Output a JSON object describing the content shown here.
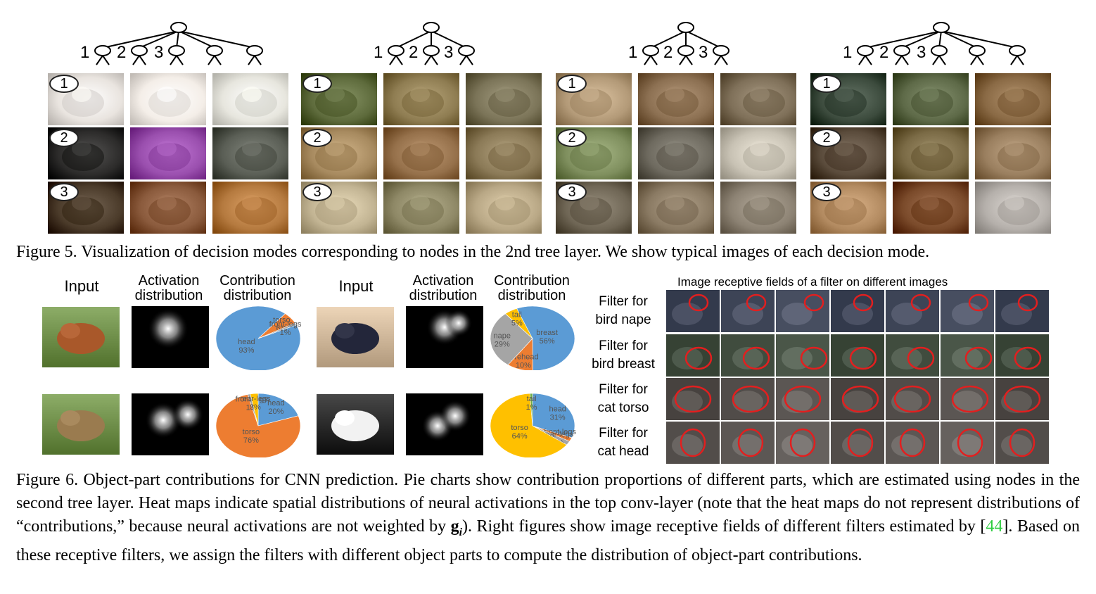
{
  "figure5": {
    "tree_numbers": [
      "1",
      "2",
      "3"
    ],
    "row_badges": [
      "1",
      "2",
      "3"
    ],
    "panels": [
      {
        "name": "dogs",
        "children": 5,
        "colors": [
          [
            "#e9e4df",
            "#f4eee8",
            "#e7e6de"
          ],
          [
            "#2c2b2a",
            "#9a4fae",
            "#5a5e55"
          ],
          [
            "#4b3b2a",
            "#8a5a3c",
            "#b57a3f"
          ]
        ]
      },
      {
        "name": "antelopes",
        "children": 3,
        "colors": [
          [
            "#5e6b3c",
            "#8f7d52",
            "#7b7458"
          ],
          [
            "#a78a5f",
            "#95704a",
            "#8b7a57"
          ],
          [
            "#c2b493",
            "#8e8866",
            "#b9a886"
          ]
        ]
      },
      {
        "name": "rabbits",
        "children": 3,
        "colors": [
          [
            "#b39a78",
            "#8c7052",
            "#7f7059"
          ],
          [
            "#7f8f5e",
            "#6e6a5f",
            "#c8c2b4"
          ],
          [
            "#6f6655",
            "#8a7a63",
            "#8c8273"
          ]
        ]
      },
      {
        "name": "squirrels",
        "children": 5,
        "colors": [
          [
            "#3c4b3d",
            "#5e6a48",
            "#8a6a45"
          ],
          [
            "#5a4b3b",
            "#7a6a45",
            "#9a7f5f"
          ],
          [
            "#b28a60",
            "#7a4a2a",
            "#b5b0ab"
          ]
        ]
      }
    ],
    "caption": "Figure 5. Visualization of decision modes corresponding to nodes in the 2nd tree layer. We show typical images of each decision mode."
  },
  "figure6": {
    "headers": {
      "input": "Input",
      "activation_line1": "Activation",
      "activation_line2": "distribution",
      "contribution_line1": "Contribution",
      "contribution_line2": "distribution"
    },
    "examples": [
      {
        "name": "fox",
        "image_color": "#a9582a",
        "slices": [
          {
            "label": "head",
            "value": "93%",
            "percent": 93,
            "color": "#5b9bd5"
          },
          {
            "label": "torso",
            "value": "6%",
            "percent": 6,
            "color": "#ed7d31"
          },
          {
            "label": "front-legs",
            "value": "1%",
            "percent": 1,
            "color": "#a5a5a5"
          }
        ]
      },
      {
        "name": "cow",
        "image_color": "#9a7b4f",
        "slices": [
          {
            "label": "head",
            "value": "20%",
            "percent": 20,
            "color": "#5b9bd5"
          },
          {
            "label": "torso",
            "value": "76%",
            "percent": 76,
            "color": "#ed7d31"
          },
          {
            "label": "front-legs",
            "value": "1%",
            "percent": 1,
            "color": "#a5a5a5"
          },
          {
            "label": "rear-legs",
            "value": "3%",
            "percent": 3,
            "color": "#ffc000"
          }
        ]
      },
      {
        "name": "bird",
        "image_color": "#23263a",
        "slices": [
          {
            "label": "breast",
            "value": "56%",
            "percent": 56,
            "color": "#5b9bd5"
          },
          {
            "label": "forehead",
            "value": "10%",
            "percent": 10,
            "color": "#ed7d31"
          },
          {
            "label": "nape",
            "value": "29%",
            "percent": 29,
            "color": "#a5a5a5"
          },
          {
            "label": "tail",
            "value": "5%",
            "percent": 5,
            "color": "#ffc000"
          }
        ]
      },
      {
        "name": "cat",
        "image_color": "#f2f2f2",
        "slices": [
          {
            "label": "head",
            "value": "31%",
            "percent": 31,
            "color": "#5b9bd5"
          },
          {
            "label": "front-legs",
            "value": "2%",
            "percent": 2,
            "color": "#ed7d31"
          },
          {
            "label": "rear-legs",
            "value": "2%",
            "percent": 2,
            "color": "#a5a5a5"
          },
          {
            "label": "torso",
            "value": "64%",
            "percent": 64,
            "color": "#ffc000"
          },
          {
            "label": "tail",
            "value": "1%",
            "percent": 1,
            "color": "#70ad47"
          }
        ]
      }
    ],
    "receptive_fields": {
      "title": "Image receptive fields of a filter on different images",
      "rows": [
        {
          "line1": "Filter for",
          "line2": "bird nape",
          "tint": "#3b4254"
        },
        {
          "line1": "Filter for",
          "line2": "bird breast",
          "tint": "#3e4a3c"
        },
        {
          "line1": "Filter for",
          "line2": "cat torso",
          "tint": "#4f4a47"
        },
        {
          "line1": "Filter for",
          "line2": "cat head",
          "tint": "#5a5552"
        }
      ]
    },
    "caption": {
      "part1": "Figure 6. Object-part contributions for CNN prediction. Pie charts show contribution proportions of different parts, which are estimated using nodes in the second tree layer. Heat maps indicate spatial distributions of neural activations in the top conv-layer (note that the heat maps do not represent distributions of “contributions,” because neural activations are not weighted by ",
      "g": "g",
      "sub": "i",
      "part2": "). Right figures show image receptive fields of different filters estimated by [",
      "ref": "44",
      "part3": "]. Based on these receptive filters, we assign the filters with different object parts to compute the distribution of object-part contributions."
    }
  }
}
